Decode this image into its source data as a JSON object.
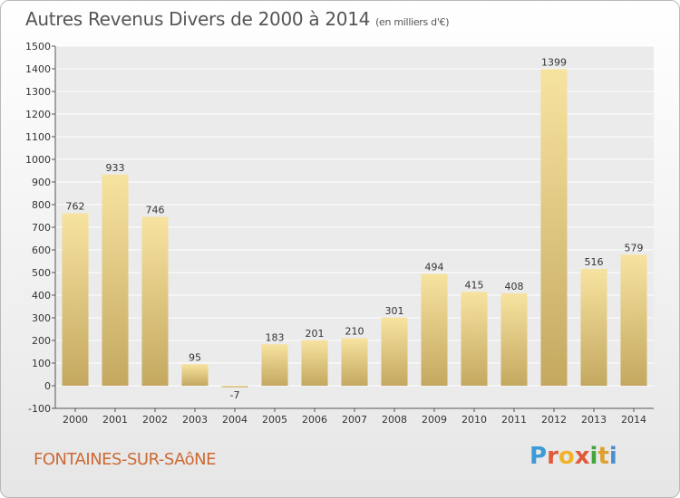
{
  "header": {
    "title": "Autres Revenus Divers de 2000 à 2014",
    "subtitle": "(en milliers d'€)"
  },
  "footer": {
    "commune": "FONTAINES-SUR-SAôNE",
    "logo_letters": [
      "P",
      "r",
      "o",
      "x",
      "i",
      "t",
      "i"
    ]
  },
  "colors": {
    "bar_light": "#f7e3a0",
    "bar_dark": "#c4a860",
    "plot_bg": "#ebebeb",
    "grid": "#ffffff",
    "text": "#333333",
    "title": "#555555",
    "commune": "#cc6a33"
  },
  "chart_data": {
    "type": "bar",
    "categories": [
      "2000",
      "2001",
      "2002",
      "2003",
      "2004",
      "2005",
      "2006",
      "2007",
      "2008",
      "2009",
      "2010",
      "2011",
      "2012",
      "2013",
      "2014"
    ],
    "values": [
      762,
      933,
      746,
      95,
      -7,
      183,
      201,
      210,
      301,
      494,
      415,
      408,
      1399,
      516,
      579
    ],
    "data_labels": [
      "762",
      "933",
      "746",
      "95",
      "-7",
      "183",
      "201",
      "210",
      "301",
      "494",
      "415",
      "408",
      "1399",
      "516",
      "579"
    ],
    "y_ticks": [
      -100,
      0,
      100,
      200,
      300,
      400,
      500,
      600,
      700,
      800,
      900,
      1000,
      1100,
      1200,
      1300,
      1400,
      1500
    ],
    "ylim": [
      -100,
      1500
    ],
    "grid": true
  }
}
